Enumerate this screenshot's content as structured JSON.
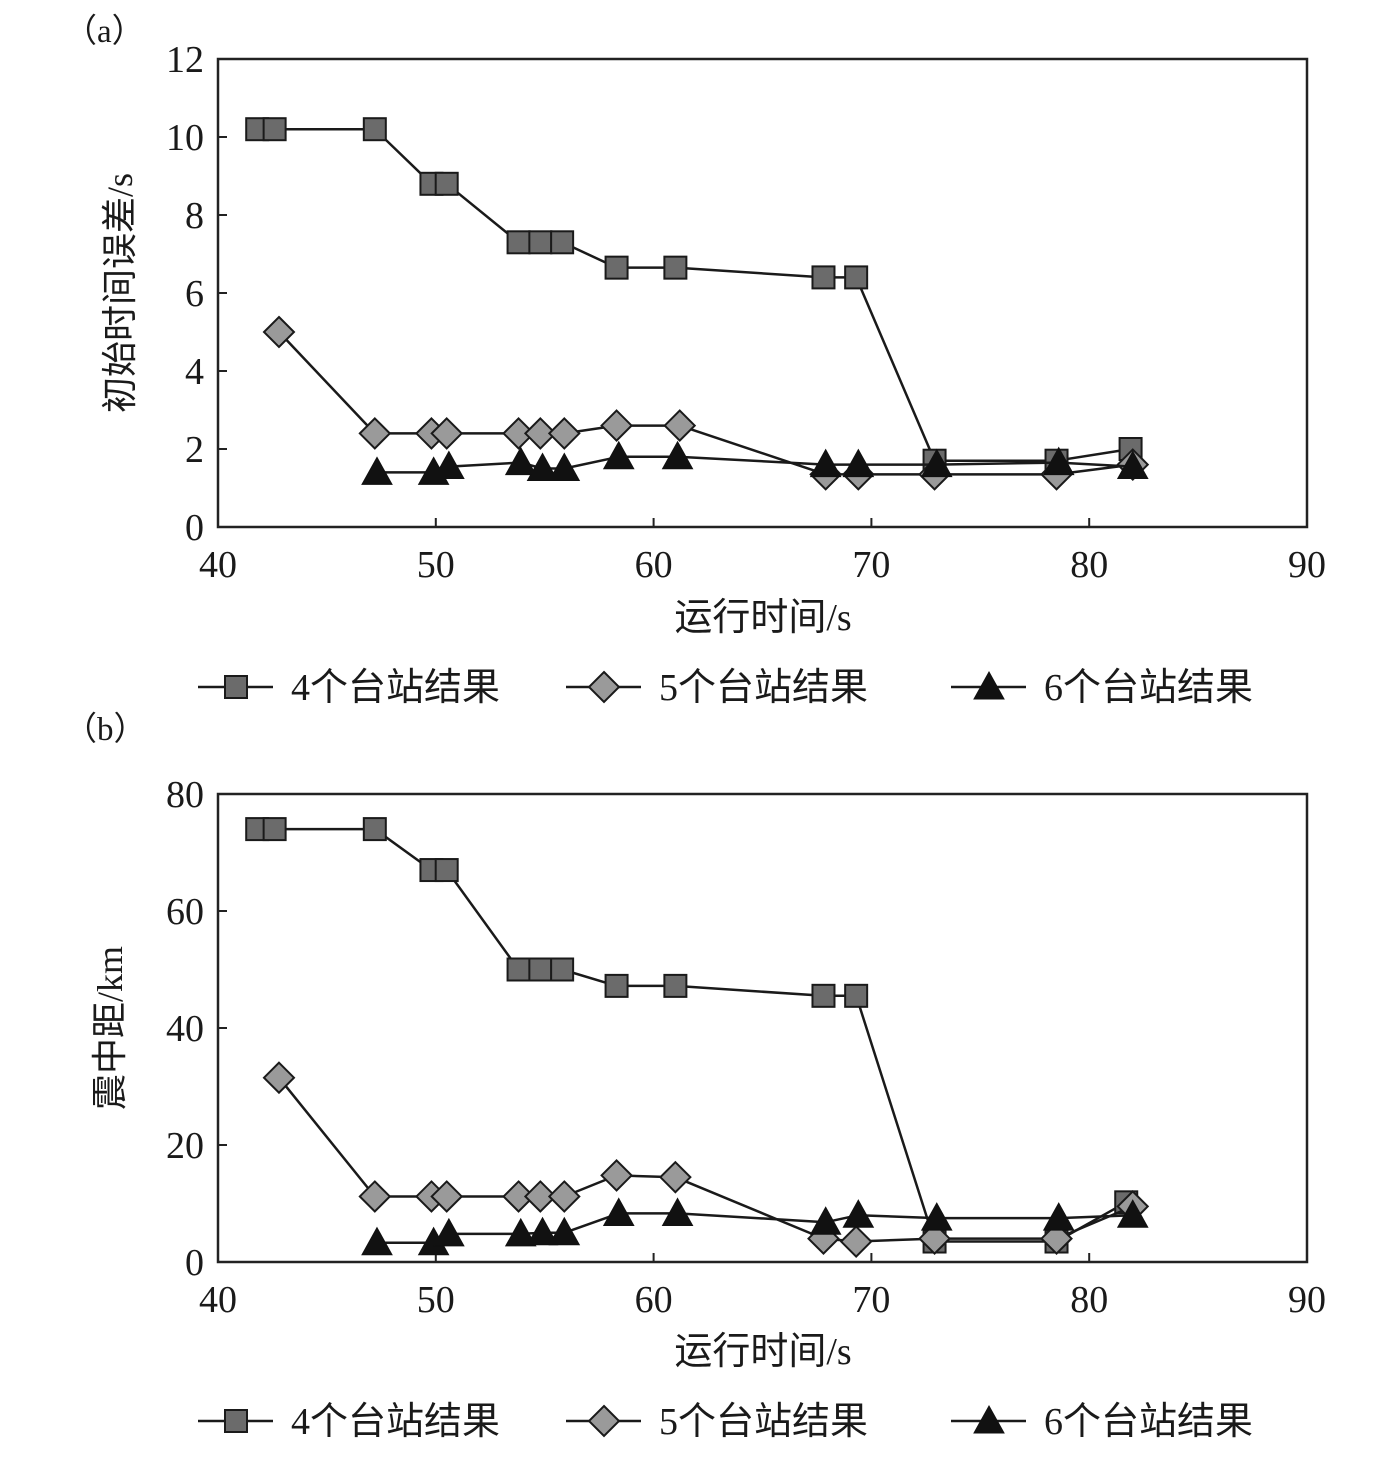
{
  "chart_data": [
    {
      "type": "line",
      "panel_label": "（a）",
      "xlabel": "运行时间/s",
      "ylabel": "初始时间误差/s",
      "xlim": [
        40,
        90
      ],
      "ylim": [
        0,
        12
      ],
      "xticks": [
        40,
        50,
        60,
        70,
        80,
        90
      ],
      "yticks": [
        0,
        2,
        4,
        6,
        8,
        10,
        12
      ],
      "grid": false,
      "legend_position": "bottom",
      "series": [
        {
          "name": "4个台站结果",
          "marker": "square",
          "color": "#6b6b6b",
          "points": [
            [
              41.8,
              10.2
            ],
            [
              42.6,
              10.2
            ],
            [
              47.2,
              10.2
            ],
            [
              49.8,
              8.8
            ],
            [
              50.5,
              8.8
            ],
            [
              53.8,
              7.3
            ],
            [
              54.8,
              7.3
            ],
            [
              55.8,
              7.3
            ],
            [
              58.3,
              6.65
            ],
            [
              61.0,
              6.65
            ],
            [
              67.8,
              6.4
            ],
            [
              69.3,
              6.4
            ],
            [
              72.9,
              1.7
            ],
            [
              78.5,
              1.7
            ],
            [
              81.9,
              2.0
            ]
          ]
        },
        {
          "name": "5个台站结果",
          "marker": "diamond",
          "color": "#9a9a9a",
          "points": [
            [
              42.8,
              5.0
            ],
            [
              47.2,
              2.4
            ],
            [
              49.8,
              2.4
            ],
            [
              50.5,
              2.4
            ],
            [
              53.8,
              2.4
            ],
            [
              54.8,
              2.4
            ],
            [
              55.9,
              2.4
            ],
            [
              58.3,
              2.6
            ],
            [
              61.2,
              2.6
            ],
            [
              67.9,
              1.35
            ],
            [
              69.4,
              1.35
            ],
            [
              72.9,
              1.35
            ],
            [
              78.5,
              1.35
            ],
            [
              82.0,
              1.6
            ]
          ]
        },
        {
          "name": "6个台站结果",
          "marker": "triangle",
          "color": "#111111",
          "points": [
            [
              47.3,
              1.4
            ],
            [
              49.9,
              1.4
            ],
            [
              50.6,
              1.55
            ],
            [
              53.9,
              1.65
            ],
            [
              54.9,
              1.5
            ],
            [
              55.9,
              1.5
            ],
            [
              58.4,
              1.8
            ],
            [
              61.1,
              1.8
            ],
            [
              67.9,
              1.6
            ],
            [
              69.4,
              1.6
            ],
            [
              73.0,
              1.6
            ],
            [
              78.6,
              1.65
            ],
            [
              82.0,
              1.55
            ]
          ]
        }
      ]
    },
    {
      "type": "line",
      "panel_label": "（b）",
      "xlabel": "运行时间/s",
      "ylabel": "震中距/km",
      "xlim": [
        40,
        90
      ],
      "ylim": [
        0,
        80
      ],
      "xticks": [
        40,
        50,
        60,
        70,
        80,
        90
      ],
      "yticks": [
        0,
        20,
        40,
        60,
        80
      ],
      "grid": false,
      "legend_position": "bottom",
      "series": [
        {
          "name": "4个台站结果",
          "marker": "square",
          "color": "#6b6b6b",
          "points": [
            [
              41.8,
              74
            ],
            [
              42.6,
              74
            ],
            [
              47.2,
              74
            ],
            [
              49.8,
              67
            ],
            [
              50.5,
              67
            ],
            [
              53.8,
              50
            ],
            [
              54.8,
              50
            ],
            [
              55.8,
              50
            ],
            [
              58.3,
              47.2
            ],
            [
              61.0,
              47.2
            ],
            [
              67.8,
              45.5
            ],
            [
              69.3,
              45.5
            ],
            [
              72.9,
              3.5
            ],
            [
              78.5,
              3.5
            ],
            [
              81.7,
              10.2
            ]
          ]
        },
        {
          "name": "5个台站结果",
          "marker": "diamond",
          "color": "#9a9a9a",
          "points": [
            [
              42.8,
              31.5
            ],
            [
              47.2,
              11.2
            ],
            [
              49.8,
              11.2
            ],
            [
              50.5,
              11.2
            ],
            [
              53.8,
              11.2
            ],
            [
              54.8,
              11.2
            ],
            [
              55.9,
              11.2
            ],
            [
              58.3,
              14.8
            ],
            [
              61.0,
              14.5
            ],
            [
              67.8,
              4.0
            ],
            [
              69.3,
              3.5
            ],
            [
              72.9,
              4.0
            ],
            [
              78.5,
              4.0
            ],
            [
              82.0,
              9.5
            ]
          ]
        },
        {
          "name": "6个台站结果",
          "marker": "triangle",
          "color": "#111111",
          "points": [
            [
              47.3,
              3.3
            ],
            [
              49.9,
              3.3
            ],
            [
              50.6,
              4.8
            ],
            [
              53.9,
              4.8
            ],
            [
              54.9,
              5.0
            ],
            [
              55.9,
              5.0
            ],
            [
              58.4,
              8.3
            ],
            [
              61.1,
              8.3
            ],
            [
              67.9,
              6.8
            ],
            [
              69.4,
              8.0
            ],
            [
              73.0,
              7.5
            ],
            [
              78.6,
              7.5
            ],
            [
              82.0,
              8.0
            ]
          ]
        }
      ]
    }
  ]
}
